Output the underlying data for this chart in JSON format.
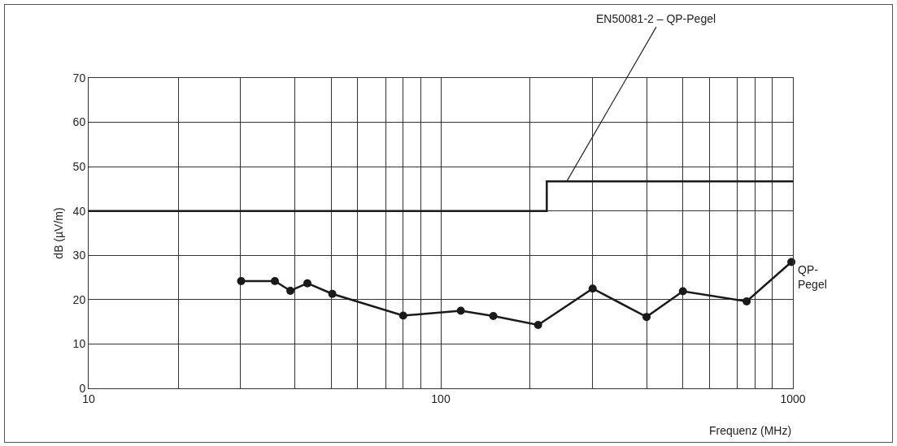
{
  "chart_data": {
    "type": "line",
    "xlabel": "Frequenz (MHz)",
    "ylabel": "dB (µV/m)",
    "log": "x",
    "grid": true,
    "xlim": [
      10,
      1000
    ],
    "xticks": [
      10,
      {
        "value": 18,
        "label": null
      },
      {
        "value": 27,
        "label": null
      },
      {
        "value": 38.6,
        "label": null
      },
      {
        "value": 49,
        "label": null
      },
      {
        "value": 58,
        "label": null
      },
      {
        "value": 70,
        "label": null
      },
      {
        "value": 78,
        "label": null
      },
      {
        "value": 88,
        "label": null
      },
      100,
      {
        "value": 179,
        "label": null
      },
      {
        "value": 270,
        "label": null
      },
      {
        "value": 385,
        "label": null
      },
      {
        "value": 487,
        "label": null
      },
      {
        "value": 580,
        "label": null
      },
      {
        "value": 695,
        "label": null
      },
      {
        "value": 780,
        "label": null
      },
      {
        "value": 872,
        "label": null
      },
      1000
    ],
    "ylim": [
      0,
      70
    ],
    "yticks": [
      0,
      10,
      20,
      30,
      40,
      50,
      60,
      70
    ],
    "series": [
      {
        "name": "QP-Pegel",
        "type": "line",
        "color": "#1a1a1a",
        "marker": "circle",
        "x": [
          27.1,
          33.8,
          37.4,
          41.8,
          49.2,
          78.2,
          114,
          141,
          189,
          270,
          384,
          487,
          739,
          990
        ],
        "values": [
          24.2,
          24.2,
          22.0,
          23.7,
          21.3,
          16.4,
          17.5,
          16.3,
          14.3,
          22.5,
          16.1,
          21.9,
          19.6,
          28.5
        ]
      },
      {
        "type": "step",
        "color": "#1a1a1a",
        "marker": "none",
        "x": [
          10,
          200,
          1000
        ],
        "values": [
          40,
          46.7,
          46.7
        ]
      }
    ],
    "annotations": [
      {
        "text": "EN50081-2 – QP-Pegel",
        "x": 228,
        "y": 46.7
      }
    ]
  }
}
